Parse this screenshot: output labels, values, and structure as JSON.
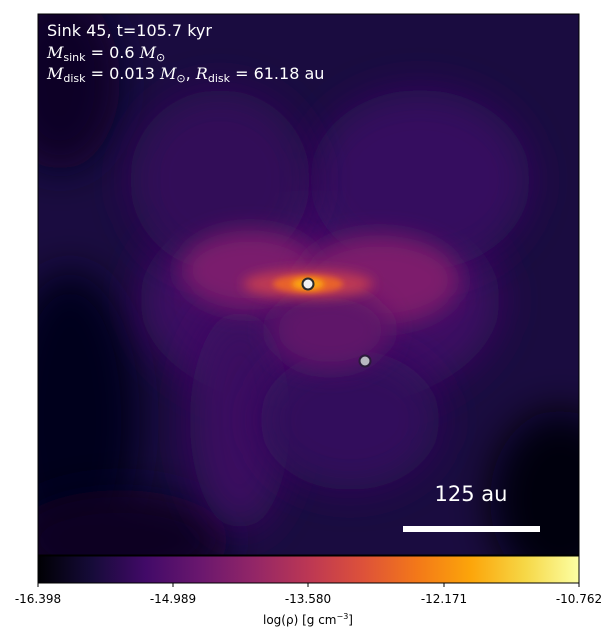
{
  "chart_data": {
    "type": "heatmap",
    "title_lines": {
      "line1": "Sink 45, t=105.7 kyr",
      "line2": "M_sink = 0.6 M_⊙",
      "line3": "M_disk = 0.013 M_⊙, R_disk = 61.18 au"
    },
    "sink": {
      "id": "45",
      "time": "105.7",
      "time_unit": "kyr",
      "mass": "0.6",
      "disk_mass": "0.013",
      "disk_radius": "61.18",
      "radius_unit": "au"
    },
    "colormap": "inferno",
    "colorbar": {
      "label": "log(ρ) [g cm⁻³]",
      "label_text": "log(ρ) [g cm",
      "label_exp": "−3",
      "label_tail": "]",
      "min": -16.398,
      "max": -10.762,
      "ticks": [
        "-16.398",
        "-14.989",
        "-13.580",
        "-12.171",
        "-10.762"
      ]
    },
    "scalebar": {
      "label": "125 au",
      "length_au": 125
    },
    "sinks_shown": [
      {
        "name": "primary sink",
        "fill": "#f2f2f2"
      },
      {
        "name": "secondary sink",
        "fill": "#b8b8c0"
      }
    ]
  }
}
